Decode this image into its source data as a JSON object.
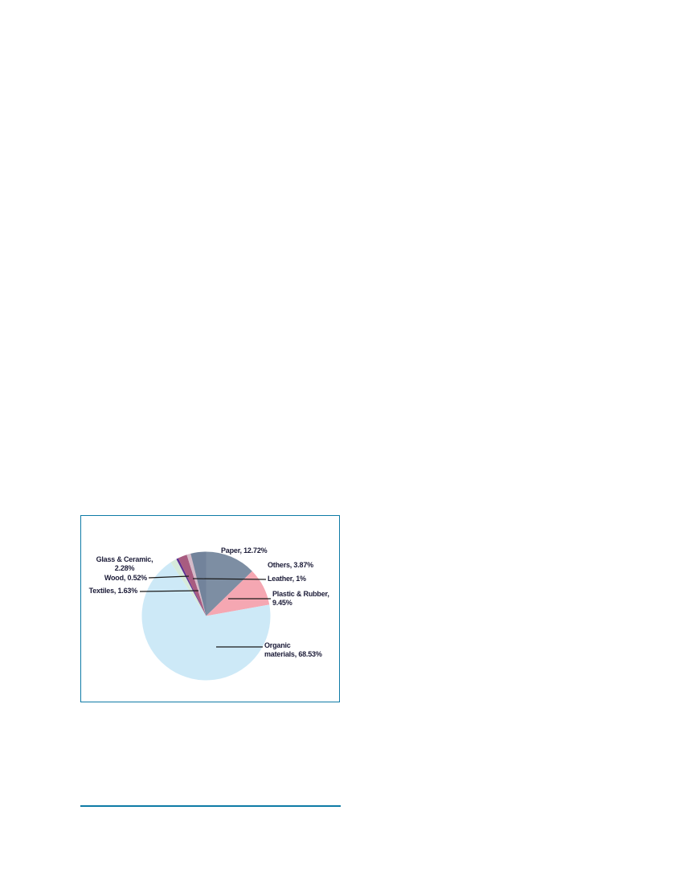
{
  "page": {
    "background_color": "#ffffff"
  },
  "chart_frame": {
    "border_color": "#0e7ba6"
  },
  "footer_rule": {
    "color": "#0e7ba6"
  },
  "chart_data": {
    "type": "pie",
    "title": "",
    "legend_position": "none",
    "start_angle": "12 o'clock",
    "direction": "clockwise",
    "unit": "%",
    "categories": [
      "Paper",
      "Plastic & Rubber",
      "Organic materials",
      "Textiles",
      "Wood",
      "Glass & Ceramic",
      "Leather",
      "Others"
    ],
    "values": [
      12.72,
      9.45,
      68.53,
      1.63,
      0.52,
      2.28,
      1.0,
      3.87
    ],
    "slice_colors": [
      "#7D8EA3",
      "#F5A7B2",
      "#CDE9F7",
      "#D6EADB",
      "#5B2D91",
      "#A85C80",
      "#D5BAC8",
      "#72839B"
    ],
    "callouts": [
      {
        "id": "paper",
        "text": "Paper, 12.72%"
      },
      {
        "id": "others",
        "text": "Others, 3.87%"
      },
      {
        "id": "leather",
        "text": "Leather, 1%"
      },
      {
        "id": "plastic-rubber",
        "text": "Plastic & Rubber,\n9.45%"
      },
      {
        "id": "organic-materials",
        "text": "Organic\nmaterials, 68.53%"
      },
      {
        "id": "glass-ceramic",
        "text": "Glass & Ceramic,\n2.28%"
      },
      {
        "id": "wood",
        "text": "Wood, 0.52%"
      },
      {
        "id": "textiles",
        "text": "Textiles, 1.63%"
      }
    ],
    "leader_line_color": "#1a1a1a"
  }
}
